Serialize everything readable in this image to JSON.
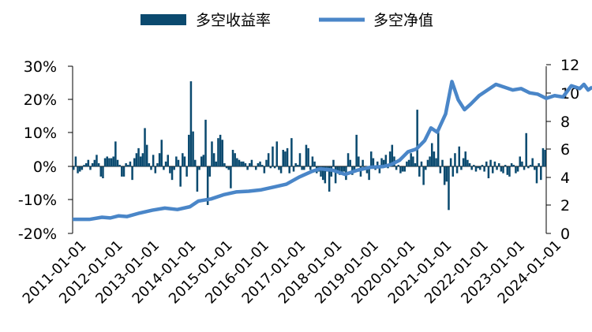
{
  "chart_data": {
    "type": "bar+line",
    "legend": {
      "placement": "top-center",
      "bar_label": "多空收益率",
      "line_label": "多空净值"
    },
    "colors": {
      "bar": "#0b4a6f",
      "line": "#4a86c8",
      "axis": "#000000"
    },
    "x_axis": {
      "ticks": [
        "2011-01-01",
        "2012-01-01",
        "2013-01-01",
        "2014-01-01",
        "2015-01-01",
        "2016-01-01",
        "2017-01-01",
        "2018-01-01",
        "2019-01-01",
        "2020-01-01",
        "2021-01-01",
        "2022-01-01",
        "2023-01-01",
        "2024-01-01"
      ],
      "range": [
        "2011-01",
        "2024-10"
      ]
    },
    "y_left": {
      "ticks": [
        "30%",
        "20%",
        "10%",
        "0%",
        "-10%",
        "-20%"
      ],
      "range": [
        -20,
        30
      ],
      "unit": "%"
    },
    "y_right": {
      "ticks": [
        "12",
        "10",
        "8",
        "6",
        "4",
        "2",
        "0"
      ],
      "range": [
        0,
        12
      ]
    },
    "series_bar": {
      "name": "多空收益率",
      "values": [
        -1,
        3,
        -2,
        -1.5,
        -1,
        0.5,
        1,
        2,
        -1,
        1,
        2,
        3.5,
        1,
        -3,
        -3.5,
        2.5,
        3,
        2.5,
        2.5,
        3,
        7.5,
        2,
        0.5,
        -3,
        -3,
        1,
        0.5,
        1.5,
        -4,
        2.5,
        4,
        5.5,
        3,
        4,
        11.5,
        6.5,
        1,
        -1,
        3.5,
        -2,
        1,
        4,
        8,
        -1,
        1.5,
        3.5,
        -2,
        -4,
        -1,
        3,
        2,
        -6,
        4,
        3,
        -3,
        9.5,
        25.5,
        10.5,
        2,
        -7.5,
        -1,
        3,
        3.5,
        14,
        -11.5,
        -3,
        7.5,
        4,
        1.5,
        8.5,
        9.5,
        8,
        1,
        -0.5,
        -1,
        -6.5,
        5,
        4,
        2.5,
        2,
        1.5,
        1.5,
        1,
        -1,
        1,
        2,
        0,
        -1,
        1,
        1.5,
        0.5,
        -2,
        2,
        4,
        -0.5,
        6,
        -0.5,
        7.5,
        -1,
        -2,
        5,
        4.5,
        5.5,
        -2,
        8.5,
        -1.5,
        1,
        0.5,
        4,
        -1,
        -1,
        6.5,
        5.5,
        -1,
        3,
        1.5,
        -2,
        -1.5,
        -3,
        -4,
        -5,
        -1.5,
        -7.5,
        -3,
        2,
        -5,
        -1.5,
        -2.5,
        -2,
        -1.5,
        -4,
        4,
        2,
        -2.5,
        -1,
        9.5,
        3,
        -3,
        2,
        -1,
        -2,
        -4,
        4.5,
        2.5,
        -1,
        1.5,
        -2,
        2.5,
        2,
        3.5,
        -0.5,
        4.5,
        6.5,
        3,
        -1,
        0.5,
        -2,
        -1.5,
        -1.5,
        1.5,
        2,
        4,
        3,
        1,
        17,
        -3,
        1.5,
        -5.5,
        -1,
        2,
        3,
        7,
        4.5,
        2.5,
        11.5,
        -2,
        2,
        -5.5,
        -4.5,
        -13,
        2.5,
        -3,
        4,
        -2,
        6,
        -1,
        2.5,
        4.5,
        2,
        1,
        -1,
        0.5,
        -1.5,
        -0.5,
        -1,
        0.5,
        -1.5,
        1.5,
        -3.5,
        2,
        -2,
        1.5,
        -1,
        1,
        -1.5,
        -2,
        0.5,
        -2.5,
        -3,
        1,
        0.5,
        -2,
        -1.5,
        3,
        1.5,
        -1,
        10,
        -0.5,
        0.5,
        2.5,
        -1,
        -5,
        1,
        -4,
        5.5,
        5
      ]
    },
    "series_line": {
      "name": "多空净值",
      "points": [
        [
          0,
          1.0
        ],
        [
          8,
          1.0
        ],
        [
          14,
          1.15
        ],
        [
          18,
          1.1
        ],
        [
          22,
          1.25
        ],
        [
          26,
          1.2
        ],
        [
          32,
          1.45
        ],
        [
          38,
          1.65
        ],
        [
          44,
          1.8
        ],
        [
          50,
          1.7
        ],
        [
          56,
          1.9
        ],
        [
          60,
          2.3
        ],
        [
          66,
          2.45
        ],
        [
          72,
          2.75
        ],
        [
          78,
          2.95
        ],
        [
          84,
          3.0
        ],
        [
          90,
          3.1
        ],
        [
          96,
          3.3
        ],
        [
          102,
          3.5
        ],
        [
          108,
          4.0
        ],
        [
          114,
          4.4
        ],
        [
          118,
          4.6
        ],
        [
          124,
          4.5
        ],
        [
          130,
          4.2
        ],
        [
          136,
          4.5
        ],
        [
          142,
          4.7
        ],
        [
          148,
          4.75
        ],
        [
          152,
          4.9
        ],
        [
          156,
          5.2
        ],
        [
          160,
          5.8
        ],
        [
          164,
          6.0
        ],
        [
          168,
          6.6
        ],
        [
          171,
          7.5
        ],
        [
          174,
          7.2
        ],
        [
          178,
          8.5
        ],
        [
          181,
          10.8
        ],
        [
          184,
          9.5
        ],
        [
          187,
          8.8
        ],
        [
          190,
          9.2
        ],
        [
          194,
          9.8
        ],
        [
          198,
          10.2
        ],
        [
          202,
          10.6
        ],
        [
          206,
          10.4
        ],
        [
          210,
          10.2
        ],
        [
          214,
          10.3
        ],
        [
          218,
          10.0
        ],
        [
          222,
          9.9
        ],
        [
          226,
          9.6
        ],
        [
          230,
          9.8
        ],
        [
          234,
          9.7
        ],
        [
          238,
          10.5
        ],
        [
          242,
          10.3
        ],
        [
          244,
          10.6
        ],
        [
          246,
          10.2
        ],
        [
          248,
          10.4
        ]
      ]
    }
  }
}
